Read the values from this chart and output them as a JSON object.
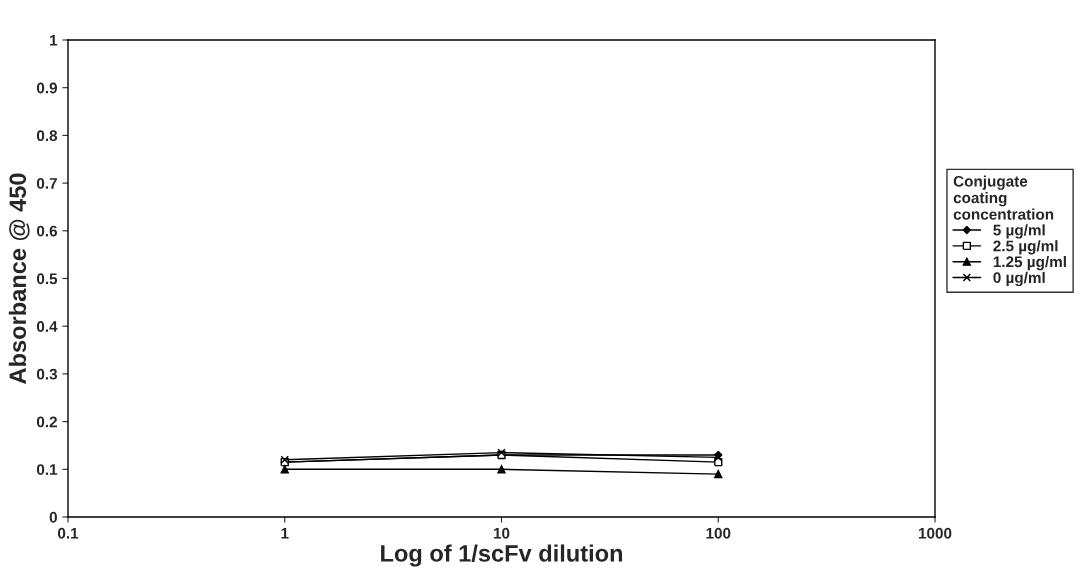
{
  "chart_data": {
    "type": "line",
    "xlabel": "Log of 1/scFv dilution",
    "ylabel": "Absorbance @ 450",
    "legend_title": "Conjugate\ncoating\nconcentration",
    "legend": "right",
    "log": "x",
    "grid": false,
    "x": [
      1,
      10,
      100
    ],
    "series": [
      {
        "name": "5 µg/ml",
        "color": "#000000",
        "marker": "diamond",
        "values": [
          0.115,
          0.13,
          0.13
        ]
      },
      {
        "name": "2.5 µg/ml",
        "color": "#000000",
        "marker": "square",
        "values": [
          0.115,
          0.13,
          0.115
        ]
      },
      {
        "name": "1.25 µg/ml",
        "color": "#000000",
        "marker": "triangle",
        "values": [
          0.1,
          0.1,
          0.09
        ]
      },
      {
        "name": "0 µg/ml",
        "color": "#000000",
        "marker": "cross",
        "values": [
          0.12,
          0.135,
          0.125
        ]
      }
    ],
    "xlim": [
      0.1,
      1000
    ],
    "xticks": [
      0.1,
      1,
      10,
      100,
      1000
    ],
    "ylim": [
      0,
      1
    ],
    "yticks": [
      0,
      0.1,
      0.2,
      0.3,
      0.4,
      0.5,
      0.6,
      0.7,
      0.8,
      0.9,
      1
    ]
  }
}
